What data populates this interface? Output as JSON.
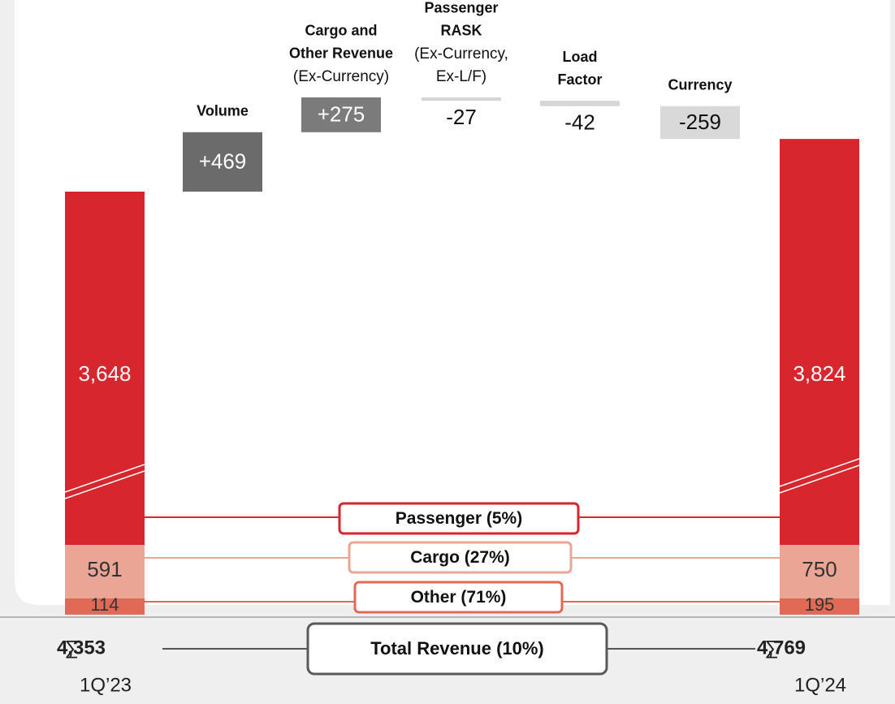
{
  "chart_data": {
    "type": "waterfall",
    "categories": [
      "1Q’23",
      "1Q’24"
    ],
    "series": [
      {
        "name": "Passenger (5%)",
        "color": "#d7262e",
        "values": [
          3648,
          3824
        ],
        "value_labels": [
          "3,648",
          "3,824"
        ]
      },
      {
        "name": "Cargo (27%)",
        "color": "#eba595",
        "values": [
          591,
          750
        ]
      },
      {
        "name": "Other (71%)",
        "color": "#e06a55",
        "values": [
          114,
          195
        ]
      }
    ],
    "totals": {
      "name": "Total Revenue (10%)",
      "symbol": "∑",
      "values": [
        4353,
        4769
      ],
      "value_labels": [
        "4,353",
        "4,769"
      ]
    },
    "steps": [
      {
        "title_lines": [
          "Volume"
        ],
        "value": 469,
        "value_label": "+469",
        "color": "#6b6b6b",
        "style": "box"
      },
      {
        "title_lines": [
          "Cargo and",
          "Other Revenue"
        ],
        "note_lines": [
          "(Ex-Currency)"
        ],
        "value": 275,
        "value_label": "+275",
        "color": "#7b7b7b",
        "style": "box"
      },
      {
        "title_lines": [
          "Passenger",
          "RASK"
        ],
        "note_lines": [
          "(Ex-Currency,",
          "Ex-L/F)"
        ],
        "value": -27,
        "color": "#d6d6d6",
        "style": "bar"
      },
      {
        "title_lines": [
          "Load",
          "Factor"
        ],
        "value": -42,
        "color": "#d6d6d6",
        "style": "bar"
      },
      {
        "title_lines": [
          "Currency"
        ],
        "value": -259,
        "color": "#d9d9d9",
        "style": "box"
      }
    ]
  }
}
